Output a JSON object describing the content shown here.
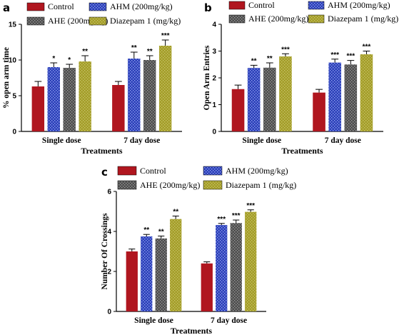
{
  "palette": {
    "control": "#b0161f",
    "ahm": "#2b3fb8",
    "ahe": "#4d4d4d",
    "diazepam": "#a39d28"
  },
  "chart_data": [
    {
      "id": "a",
      "type": "bar",
      "panel_label": "a",
      "ylabel": "% open arm time",
      "xlabel": "Treatments",
      "categories": [
        "Single dose",
        "7 day dose"
      ],
      "ylim": [
        0,
        15
      ],
      "yticks": [
        "0",
        "5",
        "10",
        "15"
      ],
      "legend_placement": "top",
      "series": [
        {
          "name": "Control",
          "key": "control",
          "values": [
            6.3,
            6.5
          ],
          "errors": [
            0.7,
            0.5
          ],
          "stars": [
            "",
            ""
          ]
        },
        {
          "name": "AHM (200mg/kg)",
          "key": "ahm",
          "values": [
            9.0,
            10.2
          ],
          "errors": [
            0.6,
            0.9
          ],
          "stars": [
            "*",
            "**"
          ]
        },
        {
          "name": "AHE (200mg/kg)",
          "key": "ahe",
          "values": [
            8.9,
            10.0
          ],
          "errors": [
            0.5,
            0.6
          ],
          "stars": [
            "*",
            "**"
          ]
        },
        {
          "name": "Diazepam 1 (mg/kg)",
          "key": "diazepam",
          "values": [
            9.8,
            12.0
          ],
          "errors": [
            0.8,
            0.8
          ],
          "stars": [
            "**",
            "***"
          ]
        }
      ]
    },
    {
      "id": "b",
      "type": "bar",
      "panel_label": "b",
      "ylabel": "Open Arm Entries",
      "xlabel": "Treatments",
      "categories": [
        "Single dose",
        "7 day dose"
      ],
      "ylim": [
        0,
        4
      ],
      "yticks": [
        "0",
        "1",
        "2",
        "3",
        "4"
      ],
      "legend_placement": "top",
      "series": [
        {
          "name": "Control",
          "key": "control",
          "values": [
            1.58,
            1.45
          ],
          "errors": [
            0.15,
            0.12
          ],
          "stars": [
            "",
            ""
          ]
        },
        {
          "name": "AHM (200mg/kg)",
          "key": "ahm",
          "values": [
            2.37,
            2.57
          ],
          "errors": [
            0.1,
            0.13
          ],
          "stars": [
            "**",
            "***"
          ]
        },
        {
          "name": "AHE (200mg/kg)",
          "key": "ahe",
          "values": [
            2.38,
            2.5
          ],
          "errors": [
            0.18,
            0.15
          ],
          "stars": [
            "**",
            "***"
          ]
        },
        {
          "name": "Diazepam 1 (mg/kg)",
          "key": "diazepam",
          "values": [
            2.8,
            2.88
          ],
          "errors": [
            0.1,
            0.12
          ],
          "stars": [
            "***",
            "***"
          ]
        }
      ]
    },
    {
      "id": "c",
      "type": "bar",
      "panel_label": "c",
      "ylabel": "Number Of Crossings",
      "xlabel": "Treatments",
      "categories": [
        "Single dose",
        "7 day dose"
      ],
      "ylim": [
        0,
        6
      ],
      "yticks": [
        "0",
        "2",
        "4",
        "6"
      ],
      "legend_placement": "top",
      "series": [
        {
          "name": "Control",
          "key": "control",
          "values": [
            3.0,
            2.4
          ],
          "errors": [
            0.12,
            0.08
          ],
          "stars": [
            "",
            ""
          ]
        },
        {
          "name": "AHM (200mg/kg)",
          "key": "ahm",
          "values": [
            3.75,
            4.32
          ],
          "errors": [
            0.1,
            0.08
          ],
          "stars": [
            "**",
            "***"
          ]
        },
        {
          "name": "AHE (200mg/kg)",
          "key": "ahe",
          "values": [
            3.65,
            4.42
          ],
          "errors": [
            0.12,
            0.15
          ],
          "stars": [
            "**",
            "***"
          ]
        },
        {
          "name": "Diazepam 1 (mg/kg)",
          "key": "diazepam",
          "values": [
            4.62,
            4.98
          ],
          "errors": [
            0.15,
            0.1
          ],
          "stars": [
            "**",
            "***"
          ]
        }
      ]
    }
  ]
}
